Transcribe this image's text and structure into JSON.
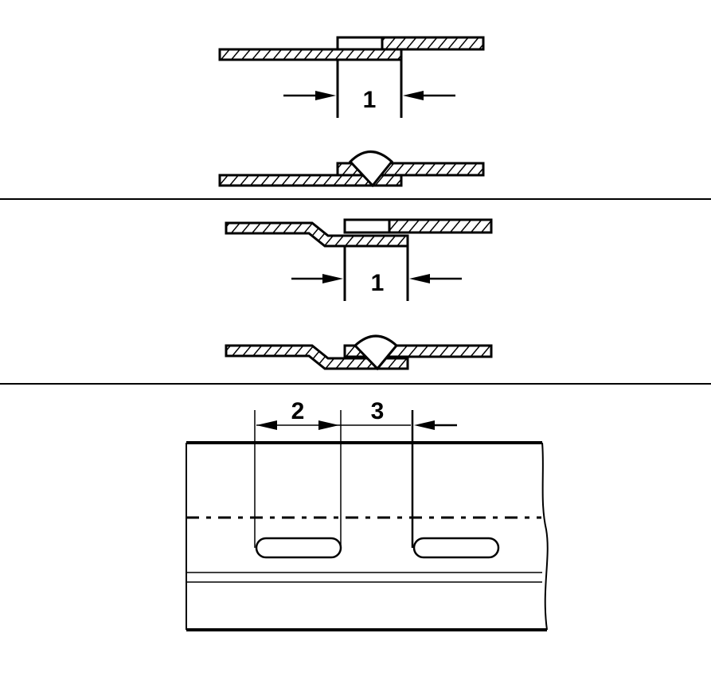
{
  "labels": {
    "panel1_dim": "1",
    "panel2_dim": "1",
    "panel3_dim_a": "2",
    "panel3_dim_b": "3"
  },
  "colors": {
    "ink": "#000000",
    "paper": "#ffffff"
  }
}
